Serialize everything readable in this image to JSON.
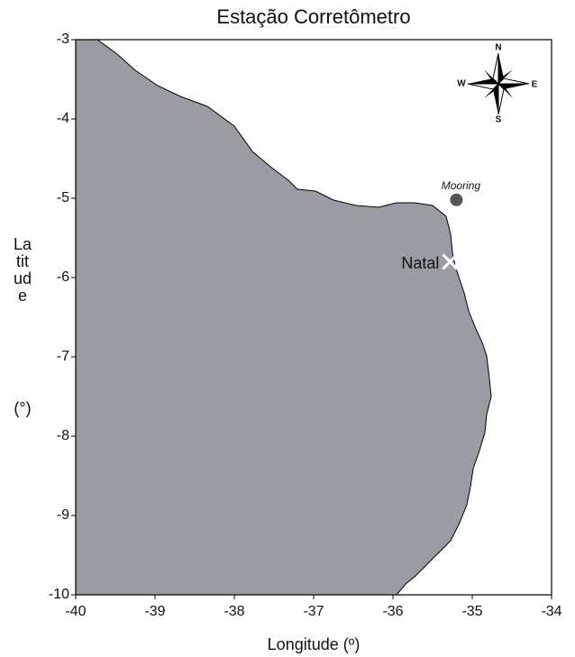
{
  "chart_data": {
    "type": "map",
    "title": "Estação Corretômetro",
    "x_label": "Longitude (º)",
    "y_label": "Latitude",
    "y_unit": "(°)",
    "xlim": [
      -40,
      -34
    ],
    "xticks": [
      -40,
      -39,
      -38,
      -37,
      -36,
      -35,
      -34
    ],
    "ylim": [
      -10,
      -3
    ],
    "yticks": [
      -3,
      -4,
      -5,
      -6,
      -7,
      -8,
      -9,
      -10
    ],
    "land_color": "#9a9ca3",
    "points": [
      {
        "label": "Mooring",
        "lon": -35.2,
        "lat": -5.02,
        "color": "#555555"
      },
      {
        "label": "Natal",
        "lon": -35.28,
        "lat": -5.8,
        "color": "#ffffff"
      }
    ],
    "compass": {
      "N": "N",
      "S": "S",
      "E": "E",
      "W": "W"
    }
  }
}
